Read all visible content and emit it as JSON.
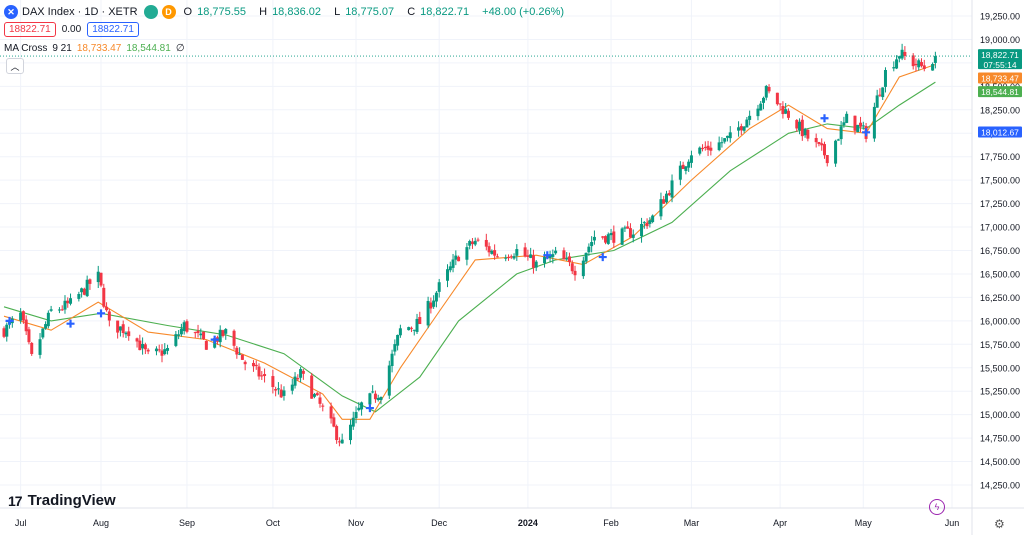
{
  "header": {
    "title": "DAX Index · 1D · XETR",
    "interval_badge": "D",
    "ohlc": [
      {
        "label": "O",
        "value": "18,775.55"
      },
      {
        "label": "H",
        "value": "18,836.02"
      },
      {
        "label": "L",
        "value": "18,775.07"
      },
      {
        "label": "C",
        "value": "18,822.71"
      },
      {
        "label": "",
        "value": "+48.00 (+0.26%)"
      }
    ],
    "bid": "18822.71",
    "spread": "0.00",
    "ask": "18822.71"
  },
  "indicator": {
    "name": "MA Cross",
    "params": "9 21",
    "ma9_value": "18,733.47",
    "ma21_value": "18,544.81",
    "extra": "∅"
  },
  "price_labels": {
    "last_price": "18,822.71",
    "countdown": "07:55:14",
    "ma9": "18,733.47",
    "ma21": "18,544.81",
    "cross_level": "18,012.67"
  },
  "branding": {
    "logo_text": "TradingView"
  },
  "colors": {
    "up": "#089981",
    "down": "#f23645",
    "ma9": "#f7892a",
    "ma21": "#4caf50",
    "cross": "#2962ff",
    "grid": "#f0f3fa",
    "last_line": "#089981"
  },
  "chart_data": {
    "type": "candlestick",
    "title": "DAX Index · 1D · XETR",
    "ylim": [
      14250,
      19250
    ],
    "y_ticks": [
      14250,
      14500,
      14750,
      15000,
      15250,
      15500,
      15750,
      16000,
      16250,
      16500,
      16750,
      17000,
      17250,
      17500,
      17750,
      18000,
      18250,
      18500,
      18750,
      19000,
      19250
    ],
    "y_tick_labels": [
      "14,250.00",
      "14,500.00",
      "14,750.00",
      "15,000.00",
      "15,250.00",
      "15,500.00",
      "15,750.00",
      "16,000.00",
      "16,250.00",
      "16,500.00",
      "16,750.00",
      "17,000.00",
      "17,250.00",
      "17,500.00",
      "17,750.00",
      "18,000.00",
      "18,250.00",
      "18,500.00",
      "18,750.00",
      "19,000.00",
      "19,250.00"
    ],
    "x_ticks": [
      {
        "label": "Jul",
        "date": "2023-07-03"
      },
      {
        "label": "Aug",
        "date": "2023-08-01"
      },
      {
        "label": "Sep",
        "date": "2023-09-01"
      },
      {
        "label": "Oct",
        "date": "2023-10-02"
      },
      {
        "label": "Nov",
        "date": "2023-11-01"
      },
      {
        "label": "Dec",
        "date": "2023-12-01"
      },
      {
        "label": "2024",
        "date": "2024-01-02",
        "bold": true
      },
      {
        "label": "Feb",
        "date": "2024-02-01"
      },
      {
        "label": "Mar",
        "date": "2024-03-01"
      },
      {
        "label": "Apr",
        "date": "2024-04-02"
      },
      {
        "label": "May",
        "date": "2024-05-02"
      },
      {
        "label": "Jun",
        "date": "2024-06-03"
      }
    ],
    "close_path": [
      {
        "date": "2023-06-27",
        "close": 15900
      },
      {
        "date": "2023-07-03",
        "close": 16060
      },
      {
        "date": "2023-07-07",
        "close": 15600
      },
      {
        "date": "2023-07-14",
        "close": 16100
      },
      {
        "date": "2023-07-21",
        "close": 16180
      },
      {
        "date": "2023-07-28",
        "close": 16400
      },
      {
        "date": "2023-07-31",
        "close": 16470
      },
      {
        "date": "2023-08-04",
        "close": 15950
      },
      {
        "date": "2023-08-11",
        "close": 15900
      },
      {
        "date": "2023-08-18",
        "close": 15620
      },
      {
        "date": "2023-08-25",
        "close": 15690
      },
      {
        "date": "2023-08-31",
        "close": 15950
      },
      {
        "date": "2023-09-08",
        "close": 15750
      },
      {
        "date": "2023-09-15",
        "close": 15870
      },
      {
        "date": "2023-09-22",
        "close": 15550
      },
      {
        "date": "2023-09-29",
        "close": 15380
      },
      {
        "date": "2023-10-06",
        "close": 15200
      },
      {
        "date": "2023-10-12",
        "close": 15430
      },
      {
        "date": "2023-10-20",
        "close": 15050
      },
      {
        "date": "2023-10-27",
        "close": 14690
      },
      {
        "date": "2023-11-03",
        "close": 15100
      },
      {
        "date": "2023-11-10",
        "close": 15250
      },
      {
        "date": "2023-11-17",
        "close": 15900
      },
      {
        "date": "2023-11-24",
        "close": 15980
      },
      {
        "date": "2023-12-01",
        "close": 16360
      },
      {
        "date": "2023-12-08",
        "close": 16700
      },
      {
        "date": "2023-12-14",
        "close": 16850
      },
      {
        "date": "2023-12-22",
        "close": 16700
      },
      {
        "date": "2023-12-29",
        "close": 16750
      },
      {
        "date": "2024-01-05",
        "close": 16600
      },
      {
        "date": "2024-01-12",
        "close": 16700
      },
      {
        "date": "2024-01-19",
        "close": 16550
      },
      {
        "date": "2024-01-26",
        "close": 16900
      },
      {
        "date": "2024-02-02",
        "close": 16900
      },
      {
        "date": "2024-02-09",
        "close": 16950
      },
      {
        "date": "2024-02-16",
        "close": 17100
      },
      {
        "date": "2024-02-23",
        "close": 17450
      },
      {
        "date": "2024-03-01",
        "close": 17800
      },
      {
        "date": "2024-03-08",
        "close": 17850
      },
      {
        "date": "2024-03-15",
        "close": 17950
      },
      {
        "date": "2024-03-22",
        "close": 18200
      },
      {
        "date": "2024-03-28",
        "close": 18450
      },
      {
        "date": "2024-04-05",
        "close": 18200
      },
      {
        "date": "2024-04-12",
        "close": 17950
      },
      {
        "date": "2024-04-19",
        "close": 17750
      },
      {
        "date": "2024-04-26",
        "close": 18150
      },
      {
        "date": "2024-05-03",
        "close": 18000
      },
      {
        "date": "2024-05-10",
        "close": 18650
      },
      {
        "date": "2024-05-15",
        "close": 18850
      },
      {
        "date": "2024-05-20",
        "close": 18750
      },
      {
        "date": "2024-05-24",
        "close": 18700
      },
      {
        "date": "2024-05-28",
        "close": 18822.71
      }
    ],
    "ma9_path": [
      {
        "date": "2023-06-27",
        "value": 16050
      },
      {
        "date": "2023-07-14",
        "value": 15900
      },
      {
        "date": "2023-07-31",
        "value": 16200
      },
      {
        "date": "2023-08-18",
        "value": 15880
      },
      {
        "date": "2023-09-08",
        "value": 15800
      },
      {
        "date": "2023-09-29",
        "value": 15550
      },
      {
        "date": "2023-10-20",
        "value": 15220
      },
      {
        "date": "2023-10-27",
        "value": 14950
      },
      {
        "date": "2023-11-06",
        "value": 14950
      },
      {
        "date": "2023-11-17",
        "value": 15500
      },
      {
        "date": "2023-12-01",
        "value": 16100
      },
      {
        "date": "2023-12-14",
        "value": 16650
      },
      {
        "date": "2024-01-05",
        "value": 16700
      },
      {
        "date": "2024-01-22",
        "value": 16600
      },
      {
        "date": "2024-02-09",
        "value": 16900
      },
      {
        "date": "2024-03-01",
        "value": 17500
      },
      {
        "date": "2024-03-22",
        "value": 18050
      },
      {
        "date": "2024-04-05",
        "value": 18300
      },
      {
        "date": "2024-04-19",
        "value": 18050
      },
      {
        "date": "2024-05-03",
        "value": 18000
      },
      {
        "date": "2024-05-15",
        "value": 18600
      },
      {
        "date": "2024-05-28",
        "value": 18733.47
      }
    ],
    "ma21_path": [
      {
        "date": "2023-06-27",
        "value": 16150
      },
      {
        "date": "2023-07-14",
        "value": 16000
      },
      {
        "date": "2023-08-01",
        "value": 16080
      },
      {
        "date": "2023-08-25",
        "value": 15950
      },
      {
        "date": "2023-09-15",
        "value": 15850
      },
      {
        "date": "2023-10-06",
        "value": 15650
      },
      {
        "date": "2023-10-27",
        "value": 15200
      },
      {
        "date": "2023-11-08",
        "value": 15030
      },
      {
        "date": "2023-11-24",
        "value": 15400
      },
      {
        "date": "2023-12-08",
        "value": 16000
      },
      {
        "date": "2023-12-29",
        "value": 16500
      },
      {
        "date": "2024-01-12",
        "value": 16650
      },
      {
        "date": "2024-02-02",
        "value": 16750
      },
      {
        "date": "2024-02-23",
        "value": 17050
      },
      {
        "date": "2024-03-15",
        "value": 17600
      },
      {
        "date": "2024-04-05",
        "value": 18000
      },
      {
        "date": "2024-04-19",
        "value": 18100
      },
      {
        "date": "2024-05-03",
        "value": 18050
      },
      {
        "date": "2024-05-15",
        "value": 18300
      },
      {
        "date": "2024-05-28",
        "value": 18544.81
      }
    ],
    "cross_markers": [
      {
        "date": "2023-06-29",
        "price": 16000
      },
      {
        "date": "2023-07-21",
        "price": 15970
      },
      {
        "date": "2023-08-01",
        "price": 16080
      },
      {
        "date": "2023-09-11",
        "price": 15800
      },
      {
        "date": "2023-11-06",
        "price": 15070
      },
      {
        "date": "2024-01-09",
        "price": 16700
      },
      {
        "date": "2024-01-29",
        "price": 16680
      },
      {
        "date": "2024-04-18",
        "price": 18160
      },
      {
        "date": "2024-05-03",
        "price": 18010
      }
    ],
    "last_price": 18822.71
  }
}
